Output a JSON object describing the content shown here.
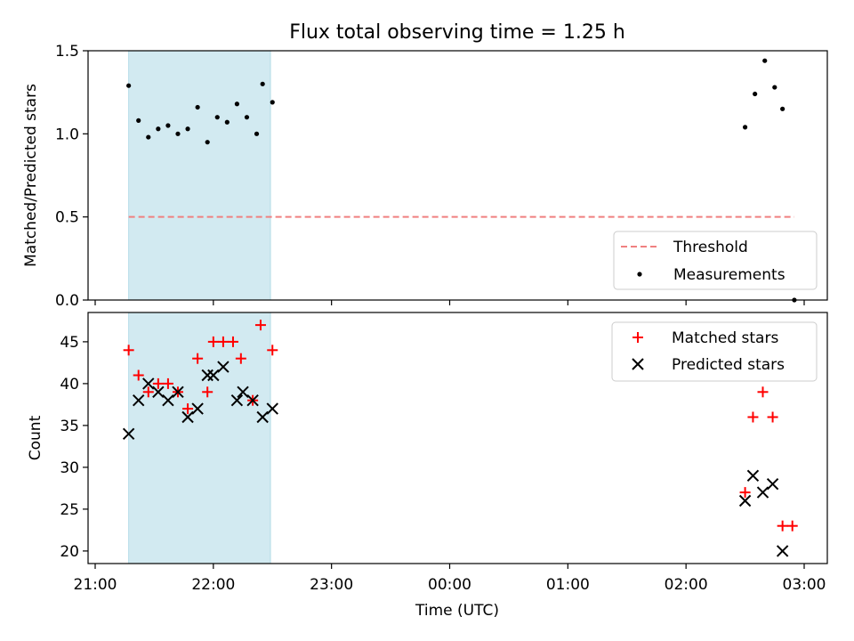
{
  "chart_data": [
    {
      "type": "scatter",
      "title": "Flux total observing time = 1.25 h",
      "ylabel": "Matched/Predicted stars",
      "xlabel": "",
      "xlim": [
        "21:00",
        "03:00"
      ],
      "ylim": [
        0,
        1.5
      ],
      "yticks": [
        "0.0",
        "0.5",
        "1.0",
        "1.5"
      ],
      "grid": false,
      "legend": {
        "placement": "lower-right",
        "entries": [
          "Threshold",
          "Measurements"
        ]
      },
      "highlight_span": {
        "start": "21:17",
        "end": "22:29",
        "color": "#add8e6"
      },
      "threshold": {
        "name": "Threshold",
        "value": 0.5,
        "x_start": "21:17",
        "x_end": "02:55",
        "color": "#f08080"
      },
      "series": [
        {
          "name": "Measurements",
          "color": "#000000",
          "points": [
            {
              "x": "21:17",
              "y": 1.29
            },
            {
              "x": "21:22",
              "y": 1.08
            },
            {
              "x": "21:27",
              "y": 0.98
            },
            {
              "x": "21:32",
              "y": 1.03
            },
            {
              "x": "21:37",
              "y": 1.05
            },
            {
              "x": "21:42",
              "y": 1.0
            },
            {
              "x": "21:47",
              "y": 1.03
            },
            {
              "x": "21:52",
              "y": 1.16
            },
            {
              "x": "21:57",
              "y": 0.95
            },
            {
              "x": "22:02",
              "y": 1.1
            },
            {
              "x": "22:07",
              "y": 1.07
            },
            {
              "x": "22:12",
              "y": 1.18
            },
            {
              "x": "22:17",
              "y": 1.1
            },
            {
              "x": "22:22",
              "y": 1.0
            },
            {
              "x": "22:25",
              "y": 1.3
            },
            {
              "x": "22:30",
              "y": 1.19
            },
            {
              "x": "02:30",
              "y": 1.04
            },
            {
              "x": "02:35",
              "y": 1.24
            },
            {
              "x": "02:40",
              "y": 1.44
            },
            {
              "x": "02:45",
              "y": 1.28
            },
            {
              "x": "02:49",
              "y": 1.15
            },
            {
              "x": "02:55",
              "y": 0.0
            }
          ]
        }
      ]
    },
    {
      "type": "scatter",
      "title": "",
      "ylabel": "Count",
      "xlabel": "Time (UTC)",
      "xticks": [
        "21:00",
        "22:00",
        "23:00",
        "00:00",
        "01:00",
        "02:00",
        "03:00"
      ],
      "xlim": [
        "21:00",
        "03:00"
      ],
      "ylim": [
        18.5,
        48.5
      ],
      "yticks": [
        "20",
        "25",
        "30",
        "35",
        "40",
        "45"
      ],
      "grid": false,
      "legend": {
        "placement": "upper-right",
        "entries": [
          "Matched stars",
          "Predicted stars"
        ]
      },
      "highlight_span": {
        "start": "21:17",
        "end": "22:29",
        "color": "#add8e6"
      },
      "series": [
        {
          "name": "Matched stars",
          "marker": "+",
          "color": "#ff0000",
          "points": [
            {
              "x": "21:17",
              "y": 44
            },
            {
              "x": "21:22",
              "y": 41
            },
            {
              "x": "21:27",
              "y": 39
            },
            {
              "x": "21:32",
              "y": 40
            },
            {
              "x": "21:37",
              "y": 40
            },
            {
              "x": "21:42",
              "y": 39
            },
            {
              "x": "21:47",
              "y": 37
            },
            {
              "x": "21:52",
              "y": 43
            },
            {
              "x": "21:57",
              "y": 39
            },
            {
              "x": "22:00",
              "y": 45
            },
            {
              "x": "22:05",
              "y": 45
            },
            {
              "x": "22:10",
              "y": 45
            },
            {
              "x": "22:14",
              "y": 43
            },
            {
              "x": "22:20",
              "y": 38
            },
            {
              "x": "22:24",
              "y": 47
            },
            {
              "x": "22:30",
              "y": 44
            },
            {
              "x": "02:30",
              "y": 27
            },
            {
              "x": "02:34",
              "y": 36
            },
            {
              "x": "02:39",
              "y": 39
            },
            {
              "x": "02:44",
              "y": 36
            },
            {
              "x": "02:49",
              "y": 23
            },
            {
              "x": "02:54",
              "y": 23
            }
          ]
        },
        {
          "name": "Predicted stars",
          "marker": "x",
          "color": "#000000",
          "points": [
            {
              "x": "21:17",
              "y": 34
            },
            {
              "x": "21:22",
              "y": 38
            },
            {
              "x": "21:27",
              "y": 40
            },
            {
              "x": "21:32",
              "y": 39
            },
            {
              "x": "21:37",
              "y": 38
            },
            {
              "x": "21:42",
              "y": 39
            },
            {
              "x": "21:47",
              "y": 36
            },
            {
              "x": "21:52",
              "y": 37
            },
            {
              "x": "21:57",
              "y": 41
            },
            {
              "x": "22:00",
              "y": 41
            },
            {
              "x": "22:05",
              "y": 42
            },
            {
              "x": "22:12",
              "y": 38
            },
            {
              "x": "22:15",
              "y": 39
            },
            {
              "x": "22:20",
              "y": 38
            },
            {
              "x": "22:25",
              "y": 36
            },
            {
              "x": "22:30",
              "y": 37
            },
            {
              "x": "02:30",
              "y": 26
            },
            {
              "x": "02:34",
              "y": 29
            },
            {
              "x": "02:39",
              "y": 27
            },
            {
              "x": "02:44",
              "y": 28
            },
            {
              "x": "02:49",
              "y": 20
            }
          ]
        }
      ]
    }
  ]
}
